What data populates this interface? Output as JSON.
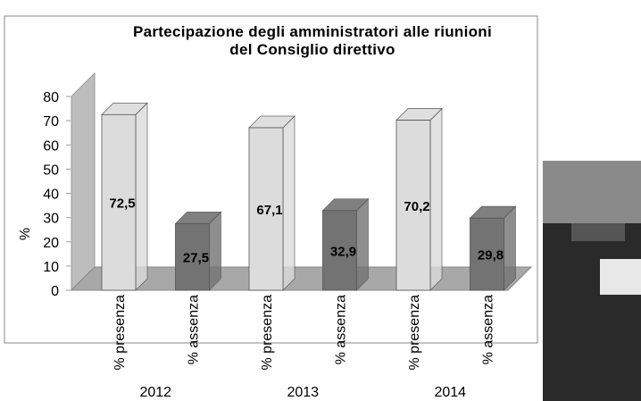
{
  "chart_data": {
    "type": "bar3d",
    "title": "Partecipazione degli amministratori alle riunioni\ndel Consiglio direttivo",
    "y_label": "%",
    "categories": [
      "% presenza",
      "% assenza",
      "% presenza",
      "% assenza",
      "% presenza",
      "% assenza"
    ],
    "groups": [
      "2012",
      "2013",
      "2014"
    ],
    "values": [
      72.5,
      27.5,
      67.1,
      32.9,
      70.2,
      29.8
    ],
    "value_labels": [
      "72,5",
      "27,5",
      "67,1",
      "32,9",
      "70,2",
      "29,8"
    ],
    "colors": [
      "#dcdcdc",
      "#737373"
    ],
    "ylim": [
      0,
      80
    ],
    "yticks": [
      0,
      10,
      20,
      30,
      40,
      50,
      60,
      70,
      80
    ]
  }
}
